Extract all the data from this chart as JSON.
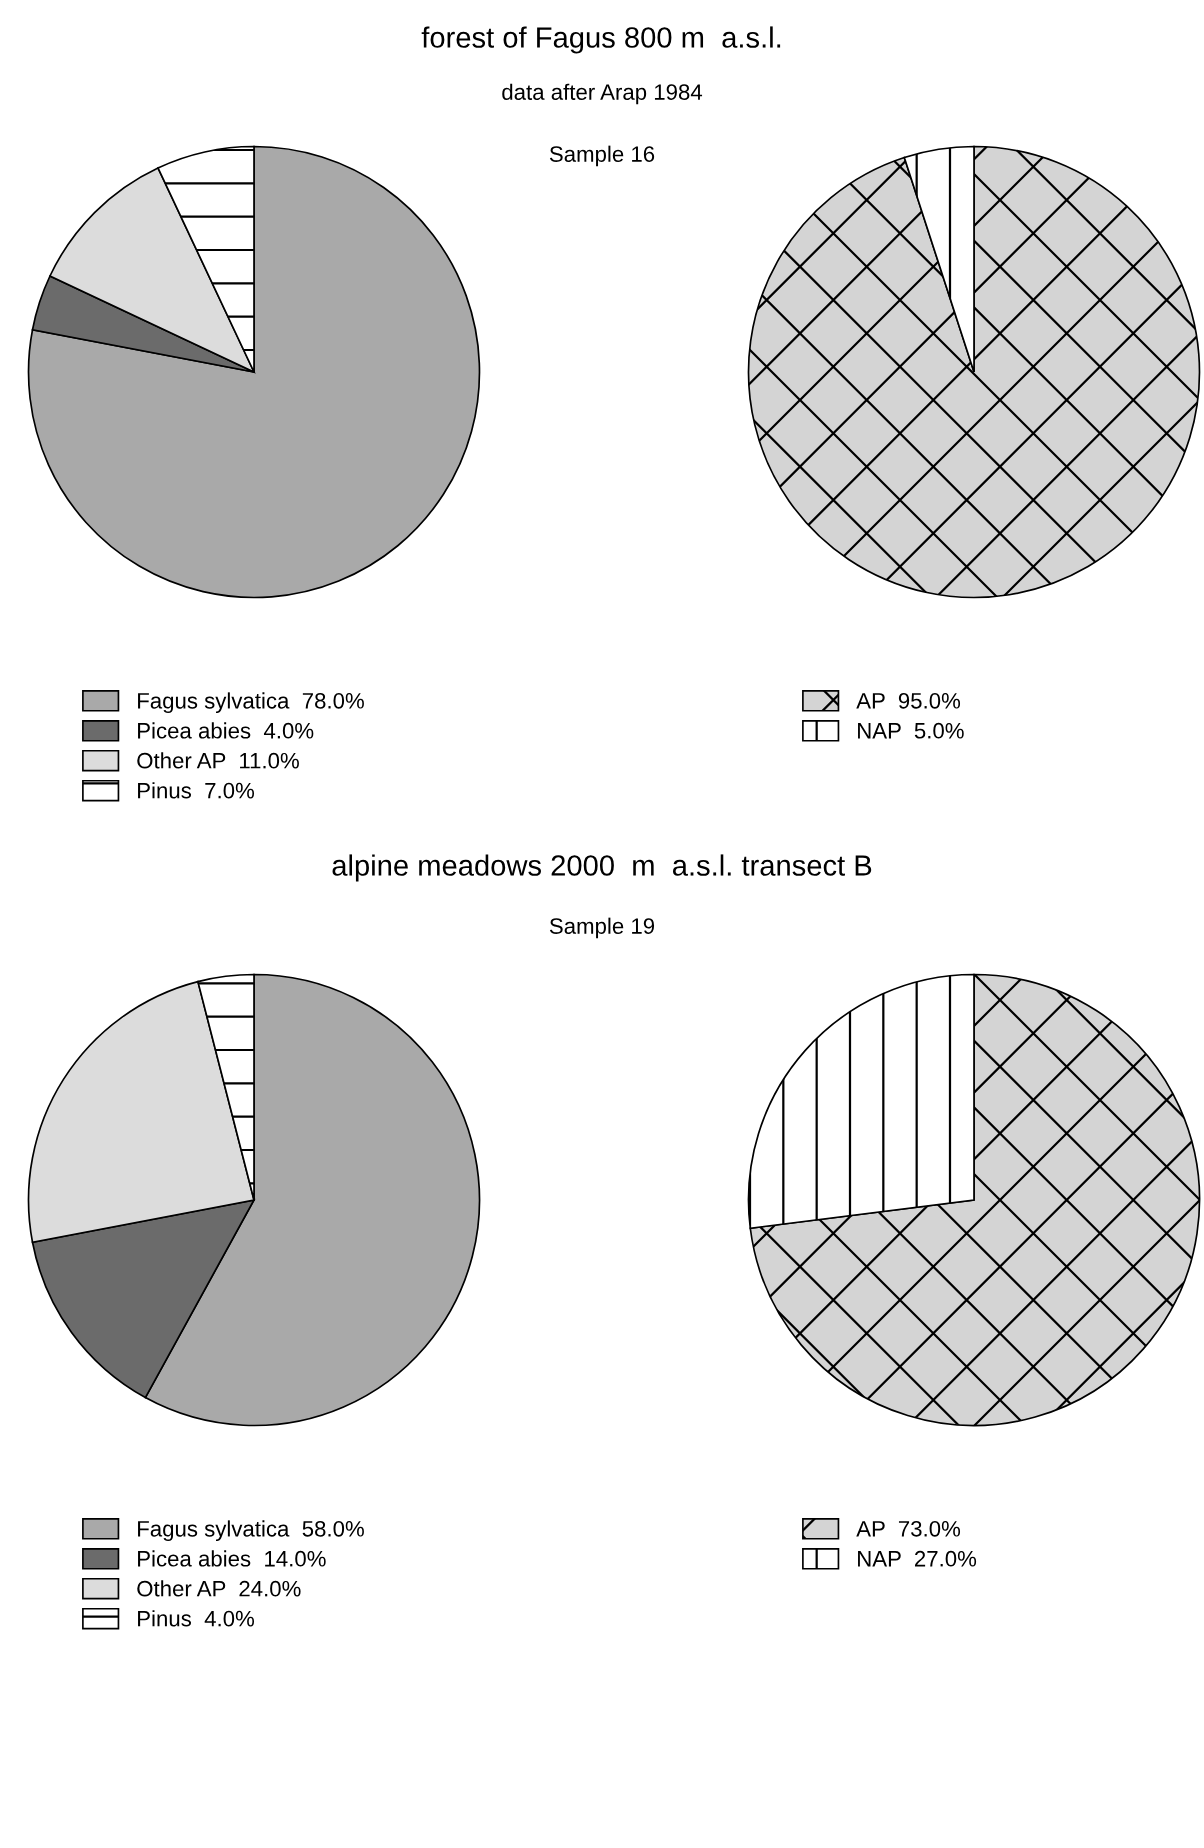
{
  "chart_data": [
    {
      "type": "pie",
      "title": "forest of Fagus 800 m  a.s.l.",
      "subtitle": "data after Arap 1984",
      "annotations": [
        "Sample 16"
      ],
      "categories": [
        "Fagus sylvatica",
        "Picea abies",
        "Other AP",
        "Pinus"
      ],
      "values": [
        78,
        4,
        11,
        7
      ],
      "value_labels": [
        "78.0%",
        "4.0%",
        "11.0%",
        "7.0%"
      ],
      "colors": [
        "#a9a9a9",
        "#6b6b6b",
        "#dcdcdc",
        "#ffffff"
      ],
      "legend": "bottom"
    },
    {
      "type": "pie",
      "categories": [
        "AP",
        "NAP"
      ],
      "values": [
        95,
        5
      ],
      "value_labels": [
        "95.0%",
        "5.0%"
      ],
      "colors": [
        "#d4d4d4",
        "#ffffff"
      ],
      "legend": "bottom"
    },
    {
      "type": "pie",
      "title": "alpine meadows 2000  m  a.s.l. transect B",
      "annotations": [
        "Sample 19"
      ],
      "categories": [
        "Fagus sylvatica",
        "Picea abies",
        "Other AP",
        "Pinus"
      ],
      "values": [
        58,
        14,
        24,
        4
      ],
      "value_labels": [
        "58.0%",
        "14.0%",
        "24.0%",
        "4.0%"
      ],
      "colors": [
        "#a9a9a9",
        "#6b6b6b",
        "#dcdcdc",
        "#ffffff"
      ],
      "legend": "bottom"
    },
    {
      "type": "pie",
      "categories": [
        "AP",
        "NAP"
      ],
      "values": [
        73,
        27
      ],
      "value_labels": [
        "73.0%",
        "27.0%"
      ],
      "colors": [
        "#d4d4d4",
        "#ffffff"
      ],
      "legend": "bottom"
    }
  ]
}
